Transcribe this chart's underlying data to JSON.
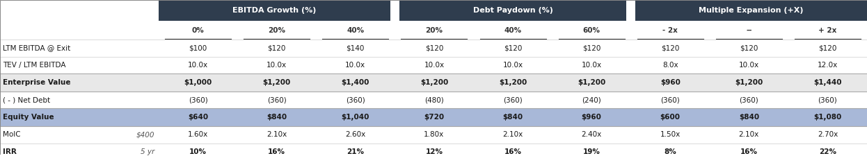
{
  "fig_width": 12.46,
  "fig_height": 2.25,
  "dpi": 100,
  "header_bg_color": "#2f3d4e",
  "header_text_color": "#ffffff",
  "subheader_text_color": "#333333",
  "row_bg_light": "#e8e8e8",
  "row_bg_blue": "#a8b8d8",
  "row_bg_white": "#ffffff",
  "bold_text_color": "#1a1a1a",
  "normal_text_color": "#333333",
  "italic_text_color": "#555555",
  "section_headers": [
    "EBITDA Growth (%)",
    "Debt Paydown (%)",
    "Multiple Expansion (+X)"
  ],
  "col_groups": [
    [
      "0%",
      "20%",
      "40%"
    ],
    [
      "20%",
      "40%",
      "60%"
    ],
    [
      "- 2x",
      "--",
      "+ 2x"
    ]
  ],
  "row_labels": [
    "LTM EBITDA @ Exit",
    "TEV / LTM EBITDA",
    "Enterprise Value",
    "( - ) Net Debt",
    "Equity Value",
    "MoIC",
    "IRR"
  ],
  "row_label2": [
    "",
    "",
    "",
    "",
    "",
    "$400",
    "5 yr"
  ],
  "row_styles": [
    "normal",
    "normal",
    "bold_gray",
    "normal",
    "bold_blue",
    "normal",
    "bold_irr"
  ],
  "data": [
    [
      "$100",
      "$120",
      "$140",
      "$120",
      "$120",
      "$120",
      "$120",
      "$120",
      "$120"
    ],
    [
      "10.0x",
      "10.0x",
      "10.0x",
      "10.0x",
      "10.0x",
      "10.0x",
      "8.0x",
      "10.0x",
      "12.0x"
    ],
    [
      "$1,000",
      "$1,200",
      "$1,400",
      "$1,200",
      "$1,200",
      "$1,200",
      "$960",
      "$1,200",
      "$1,440"
    ],
    [
      "(360)",
      "(360)",
      "(360)",
      "(480)",
      "(360)",
      "(240)",
      "(360)",
      "(360)",
      "(360)"
    ],
    [
      "$640",
      "$840",
      "$1,040",
      "$720",
      "$840",
      "$960",
      "$600",
      "$840",
      "$1,080"
    ],
    [
      "1.60x",
      "2.10x",
      "2.60x",
      "1.80x",
      "2.10x",
      "2.40x",
      "1.50x",
      "2.10x",
      "2.70x"
    ],
    [
      "10%",
      "16%",
      "21%",
      "12%",
      "16%",
      "19%",
      "8%",
      "16%",
      "22%"
    ]
  ]
}
